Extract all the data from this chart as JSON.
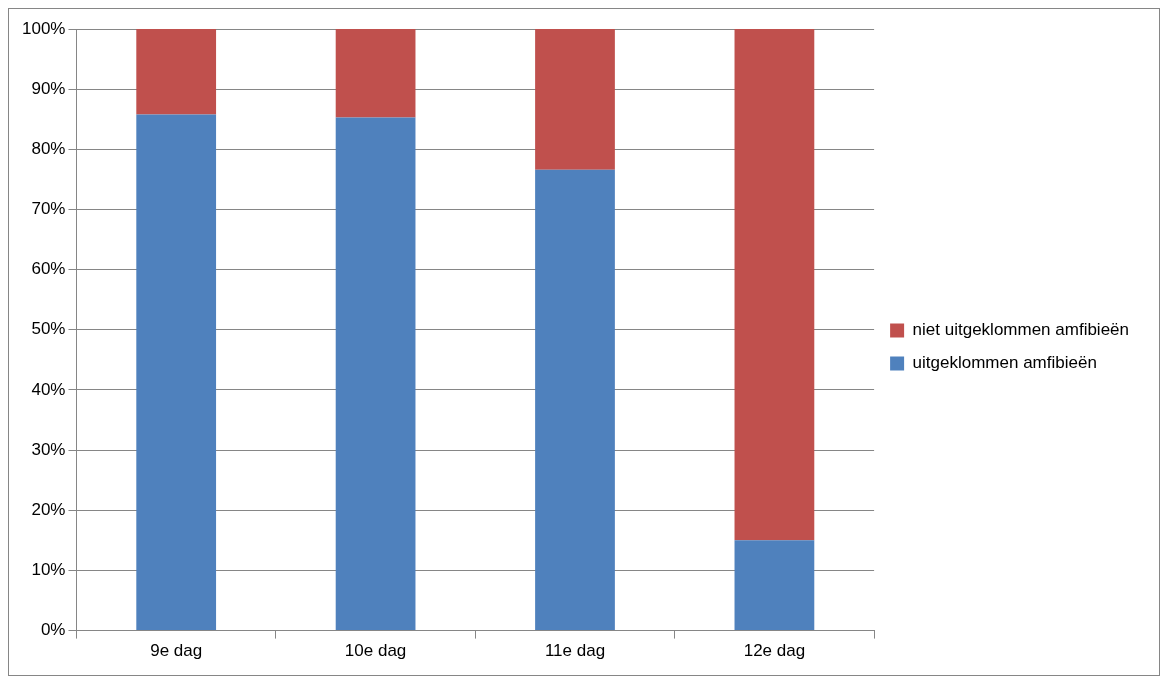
{
  "chart_data": {
    "type": "bar",
    "stacked": true,
    "categories": [
      "9e dag",
      "10e dag",
      "11e dag",
      "12e dag"
    ],
    "series": [
      {
        "name": "uitgeklommen amfibieën",
        "color": "#4f81bd",
        "values": [
          85.8,
          85.3,
          76.6,
          15.0
        ]
      },
      {
        "name": "niet uitgeklommen amfibieën",
        "color": "#c0504d",
        "values": [
          14.2,
          14.7,
          23.4,
          85.0
        ]
      }
    ],
    "ylim": [
      0,
      100
    ],
    "yticks": [
      {
        "value": 0,
        "label": "0%"
      },
      {
        "value": 10,
        "label": "10%"
      },
      {
        "value": 20,
        "label": "20%"
      },
      {
        "value": 30,
        "label": "30%"
      },
      {
        "value": 40,
        "label": "40%"
      },
      {
        "value": 50,
        "label": "50%"
      },
      {
        "value": 60,
        "label": "60%"
      },
      {
        "value": 70,
        "label": "70%"
      },
      {
        "value": 80,
        "label": "80%"
      },
      {
        "value": 90,
        "label": "90%"
      },
      {
        "value": 100,
        "label": "100%"
      }
    ],
    "grid": "y",
    "legend": "right"
  }
}
